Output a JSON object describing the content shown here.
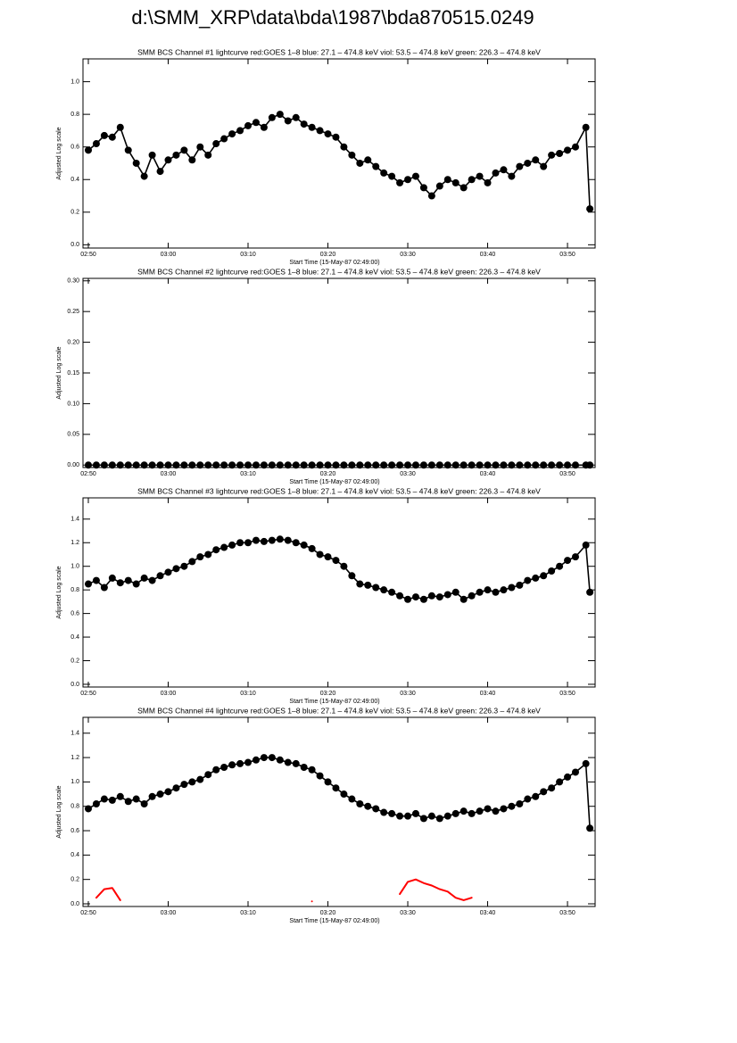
{
  "page_title": "d:\\SMM_XRP\\data\\bda\\1987\\bda870515.0249",
  "chart_data": [
    {
      "type": "line",
      "title": "SMM BCS Channel #1 lightcurve  red:GOES 1–8  blue: 27.1 – 474.8 keV  viol: 53.5 – 474.8 keV  green: 226.3 – 474.8 keV",
      "xlabel": "Start Time (15-May-87 02:49:00)",
      "ylabel": "Adjusted Log scale",
      "x": [
        1,
        2,
        3,
        4,
        5,
        6,
        7,
        8,
        9,
        10,
        11,
        12,
        13,
        14,
        15,
        16,
        17,
        18,
        19,
        20,
        21,
        22,
        23,
        24,
        25,
        26,
        27,
        28,
        29,
        30,
        31,
        32,
        33,
        34,
        35,
        36,
        37,
        38,
        39,
        40,
        41,
        42,
        43,
        44,
        45,
        46,
        47,
        48,
        49,
        50,
        51,
        52,
        53,
        54,
        55,
        56,
        57,
        58,
        59,
        60,
        61,
        62,
        63.3,
        63.8
      ],
      "xlim": [
        0.33,
        64.46
      ],
      "xticks": [
        {
          "value": 1,
          "label": "02:50"
        },
        {
          "value": 11,
          "label": "03:00"
        },
        {
          "value": 21,
          "label": "03:10"
        },
        {
          "value": 31,
          "label": "03:20"
        },
        {
          "value": 41,
          "label": "03:30"
        },
        {
          "value": 51,
          "label": "03:40"
        },
        {
          "value": 61,
          "label": "03:50"
        }
      ],
      "ylim": [
        -0.02,
        1.14
      ],
      "yticks": [
        {
          "value": 0,
          "label": "0.0"
        },
        0.2,
        0.4,
        0.6,
        0.8,
        {
          "value": 1,
          "label": "1.0"
        }
      ],
      "series": [
        {
          "color": "#000000",
          "marker": "circle",
          "values": [
            0.58,
            0.62,
            0.67,
            0.66,
            0.72,
            0.58,
            0.5,
            0.42,
            0.55,
            0.45,
            0.52,
            0.55,
            0.58,
            0.52,
            0.6,
            0.55,
            0.62,
            0.65,
            0.68,
            0.7,
            0.73,
            0.75,
            0.72,
            0.78,
            0.8,
            0.76,
            0.78,
            0.74,
            0.72,
            0.7,
            0.68,
            0.66,
            0.6,
            0.55,
            0.5,
            0.52,
            0.48,
            0.44,
            0.42,
            0.38,
            0.4,
            0.42,
            0.35,
            0.3,
            0.36,
            0.4,
            0.38,
            0.35,
            0.4,
            0.42,
            0.38,
            0.44,
            0.46,
            0.42,
            0.48,
            0.5,
            0.52,
            0.48,
            0.55,
            0.56,
            0.58,
            0.6,
            0.72,
            0.22
          ]
        }
      ]
    },
    {
      "type": "line",
      "title": "SMM BCS Channel #2 lightcurve  red:GOES 1–8  blue: 27.1 – 474.8 keV  viol: 53.5 – 474.8 keV  green: 226.3 – 474.8 keV",
      "xlabel": "Start Time (15-May-87 02:49:00)",
      "ylabel": "Adjusted Log scale",
      "x": [
        1,
        2,
        3,
        4,
        5,
        6,
        7,
        8,
        9,
        10,
        11,
        12,
        13,
        14,
        15,
        16,
        17,
        18,
        19,
        20,
        21,
        22,
        23,
        24,
        25,
        26,
        27,
        28,
        29,
        30,
        31,
        32,
        33,
        34,
        35,
        36,
        37,
        38,
        39,
        40,
        41,
        42,
        43,
        44,
        45,
        46,
        47,
        48,
        49,
        50,
        51,
        52,
        53,
        54,
        55,
        56,
        57,
        58,
        59,
        60,
        61,
        62,
        63.3,
        63.8
      ],
      "xlim": [
        0.33,
        64.46
      ],
      "xticks": [
        {
          "value": 1,
          "label": "02:50"
        },
        {
          "value": 11,
          "label": "03:00"
        },
        {
          "value": 21,
          "label": "03:10"
        },
        {
          "value": 31,
          "label": "03:20"
        },
        {
          "value": 41,
          "label": "03:30"
        },
        {
          "value": 51,
          "label": "03:40"
        },
        {
          "value": 61,
          "label": "03:50"
        }
      ],
      "ylim": [
        -0.004,
        0.304
      ],
      "yticks": [
        {
          "value": 0,
          "label": "0.00"
        },
        0.05,
        {
          "value": 0.1,
          "label": "0.10"
        },
        0.15,
        {
          "value": 0.2,
          "label": "0.20"
        },
        0.25,
        {
          "value": 0.3,
          "label": "0.30"
        }
      ],
      "series": [
        {
          "color": "#000000",
          "marker": "circle",
          "values": [
            0,
            0,
            0,
            0,
            0,
            0,
            0,
            0,
            0,
            0,
            0,
            0,
            0,
            0,
            0,
            0,
            0,
            0,
            0,
            0,
            0,
            0,
            0,
            0,
            0,
            0,
            0,
            0,
            0,
            0,
            0,
            0,
            0,
            0,
            0,
            0,
            0,
            0,
            0,
            0,
            0,
            0,
            0,
            0,
            0,
            0,
            0,
            0,
            0,
            0,
            0,
            0,
            0,
            0,
            0,
            0,
            0,
            0,
            0,
            0,
            0,
            0,
            0,
            0
          ]
        }
      ]
    },
    {
      "type": "line",
      "title": "SMM BCS Channel #3 lightcurve  red:GOES 1–8  blue: 27.1 – 474.8 keV  viol: 53.5 – 474.8 keV  green: 226.3 – 474.8 keV",
      "xlabel": "Start Time (15-May-87 02:49:00)",
      "ylabel": "Adjusted Log scale",
      "x": [
        1,
        2,
        3,
        4,
        5,
        6,
        7,
        8,
        9,
        10,
        11,
        12,
        13,
        14,
        15,
        16,
        17,
        18,
        19,
        20,
        21,
        22,
        23,
        24,
        25,
        26,
        27,
        28,
        29,
        30,
        31,
        32,
        33,
        34,
        35,
        36,
        37,
        38,
        39,
        40,
        41,
        42,
        43,
        44,
        45,
        46,
        47,
        48,
        49,
        50,
        51,
        52,
        53,
        54,
        55,
        56,
        57,
        58,
        59,
        60,
        61,
        62,
        63.3,
        63.8
      ],
      "xlim": [
        0.33,
        64.46
      ],
      "xticks": [
        {
          "value": 1,
          "label": "02:50"
        },
        {
          "value": 11,
          "label": "03:00"
        },
        {
          "value": 21,
          "label": "03:10"
        },
        {
          "value": 31,
          "label": "03:20"
        },
        {
          "value": 41,
          "label": "03:30"
        },
        {
          "value": 51,
          "label": "03:40"
        },
        {
          "value": 61,
          "label": "03:50"
        }
      ],
      "ylim": [
        -0.023,
        1.58
      ],
      "yticks": [
        {
          "value": 0,
          "label": "0.0"
        },
        0.2,
        0.4,
        0.6,
        0.8,
        {
          "value": 1,
          "label": "1.0"
        },
        1.2,
        1.4
      ],
      "series": [
        {
          "color": "#000000",
          "marker": "circle",
          "values": [
            0.85,
            0.88,
            0.82,
            0.9,
            0.86,
            0.88,
            0.85,
            0.9,
            0.88,
            0.92,
            0.95,
            0.98,
            1.0,
            1.04,
            1.08,
            1.1,
            1.14,
            1.16,
            1.18,
            1.2,
            1.2,
            1.22,
            1.21,
            1.22,
            1.23,
            1.22,
            1.2,
            1.18,
            1.15,
            1.1,
            1.08,
            1.05,
            1.0,
            0.92,
            0.85,
            0.84,
            0.82,
            0.8,
            0.78,
            0.75,
            0.72,
            0.74,
            0.72,
            0.75,
            0.74,
            0.76,
            0.78,
            0.72,
            0.75,
            0.78,
            0.8,
            0.78,
            0.8,
            0.82,
            0.84,
            0.88,
            0.9,
            0.92,
            0.96,
            1.0,
            1.05,
            1.08,
            1.18,
            0.78
          ]
        }
      ]
    },
    {
      "type": "line",
      "title": "SMM BCS Channel #4 lightcurve  red:GOES 1–8  blue: 27.1 – 474.8 keV  viol: 53.5 – 474.8 keV  green: 226.3 – 474.8 keV",
      "xlabel": "Start Time (15-May-87 02:49:00)",
      "ylabel": "Adjusted Log scale",
      "x": [
        1,
        2,
        3,
        4,
        5,
        6,
        7,
        8,
        9,
        10,
        11,
        12,
        13,
        14,
        15,
        16,
        17,
        18,
        19,
        20,
        21,
        22,
        23,
        24,
        25,
        26,
        27,
        28,
        29,
        30,
        31,
        32,
        33,
        34,
        35,
        36,
        37,
        38,
        39,
        40,
        41,
        42,
        43,
        44,
        45,
        46,
        47,
        48,
        49,
        50,
        51,
        52,
        53,
        54,
        55,
        56,
        57,
        58,
        59,
        60,
        61,
        62,
        63.3,
        63.8
      ],
      "xlim": [
        0.33,
        64.46
      ],
      "xticks": [
        {
          "value": 1,
          "label": "02:50"
        },
        {
          "value": 11,
          "label": "03:00"
        },
        {
          "value": 21,
          "label": "03:10"
        },
        {
          "value": 31,
          "label": "03:20"
        },
        {
          "value": 41,
          "label": "03:30"
        },
        {
          "value": 51,
          "label": "03:40"
        },
        {
          "value": 61,
          "label": "03:50"
        }
      ],
      "ylim": [
        -0.022,
        1.53
      ],
      "yticks": [
        {
          "value": 0,
          "label": "0.0"
        },
        0.2,
        0.4,
        0.6,
        0.8,
        {
          "value": 1,
          "label": "1.0"
        },
        1.2,
        1.4
      ],
      "series": [
        {
          "color": "#000000",
          "marker": "circle",
          "values": [
            0.78,
            0.82,
            0.86,
            0.85,
            0.88,
            0.84,
            0.86,
            0.82,
            0.88,
            0.9,
            0.92,
            0.95,
            0.98,
            1.0,
            1.02,
            1.06,
            1.1,
            1.12,
            1.14,
            1.15,
            1.16,
            1.18,
            1.2,
            1.2,
            1.18,
            1.16,
            1.15,
            1.12,
            1.1,
            1.05,
            1.0,
            0.95,
            0.9,
            0.86,
            0.82,
            0.8,
            0.78,
            0.75,
            0.74,
            0.72,
            0.72,
            0.74,
            0.7,
            0.72,
            0.7,
            0.72,
            0.74,
            0.76,
            0.74,
            0.76,
            0.78,
            0.76,
            0.78,
            0.8,
            0.82,
            0.86,
            0.88,
            0.92,
            0.95,
            1.0,
            1.04,
            1.08,
            1.15,
            0.62
          ]
        },
        {
          "color": "#ff0000",
          "values": [
            null,
            0.05,
            0.12,
            0.13,
            0.03,
            null,
            null,
            null,
            null,
            null,
            null,
            null,
            null,
            null,
            null,
            null,
            null,
            null,
            null,
            null,
            null,
            null,
            null,
            null,
            null,
            null,
            null,
            null,
            0.02,
            null,
            null,
            null,
            null,
            null,
            null,
            null,
            null,
            null,
            null,
            0.08,
            0.18,
            0.2,
            0.17,
            0.15,
            0.12,
            0.1,
            0.05,
            0.03,
            0.05,
            null,
            null,
            null,
            null,
            null,
            null,
            null,
            null,
            null,
            null,
            null,
            null,
            null,
            null,
            null
          ]
        }
      ]
    }
  ]
}
